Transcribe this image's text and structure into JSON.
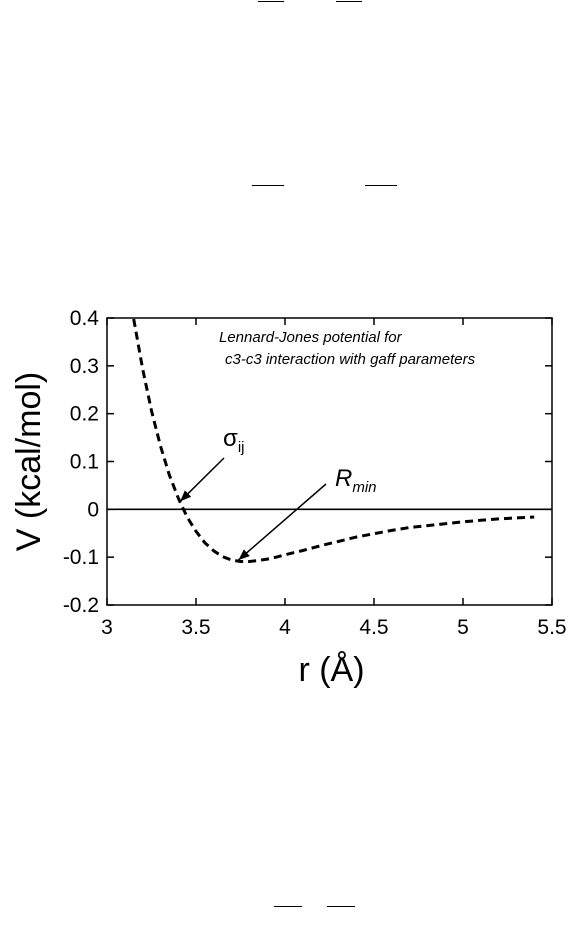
{
  "chart_data": {
    "type": "line",
    "title": "",
    "xlabel": "r (Å)",
    "ylabel": "V (kcal/mol)",
    "xlim": [
      3,
      5.5
    ],
    "ylim": [
      -0.2,
      0.4
    ],
    "x_ticks": [
      3,
      3.5,
      4,
      4.5,
      5,
      5.5
    ],
    "x_tick_labels": [
      "3",
      "3.5",
      "4",
      "4.5",
      "5",
      "5.5"
    ],
    "y_ticks": [
      -0.2,
      -0.1,
      0,
      0.1,
      0.2,
      0.3,
      0.4
    ],
    "y_tick_labels": [
      "-0.2",
      "-0.1",
      "0",
      "0.1",
      "0.2",
      "0.3",
      "0.4"
    ],
    "grid": false,
    "annotation_lines": [
      "Lennard-Jones potential for",
      "c3-c3 interaction with gaff parameters"
    ],
    "callouts": [
      {
        "label": "σ",
        "subscript": "ij",
        "x": 3.4,
        "y": 0.0
      },
      {
        "label": "R",
        "subscript": "min",
        "x": 3.75,
        "y": -0.11
      }
    ],
    "series": [
      {
        "style": "dashed",
        "x": [
          3.15,
          3.2,
          3.25,
          3.3,
          3.35,
          3.4,
          3.45,
          3.5,
          3.55,
          3.6,
          3.65,
          3.7,
          3.75,
          3.8,
          3.85,
          3.9,
          3.95,
          4.0,
          4.1,
          4.2,
          4.3,
          4.4,
          4.5,
          4.6,
          4.7,
          4.8,
          4.9,
          5.0,
          5.1,
          5.2,
          5.3,
          5.4
        ],
        "y": [
          0.398,
          0.294,
          0.206,
          0.133,
          0.072,
          0.024,
          -0.016,
          -0.046,
          -0.07,
          -0.087,
          -0.099,
          -0.106,
          -0.109,
          -0.109,
          -0.107,
          -0.104,
          -0.1,
          -0.095,
          -0.086,
          -0.076,
          -0.067,
          -0.058,
          -0.051,
          -0.044,
          -0.038,
          -0.034,
          -0.03,
          -0.026,
          -0.023,
          -0.02,
          -0.018,
          -0.016
        ]
      },
      {
        "style": "solid",
        "x": [
          3,
          5.5
        ],
        "y": [
          0,
          0
        ]
      }
    ]
  }
}
